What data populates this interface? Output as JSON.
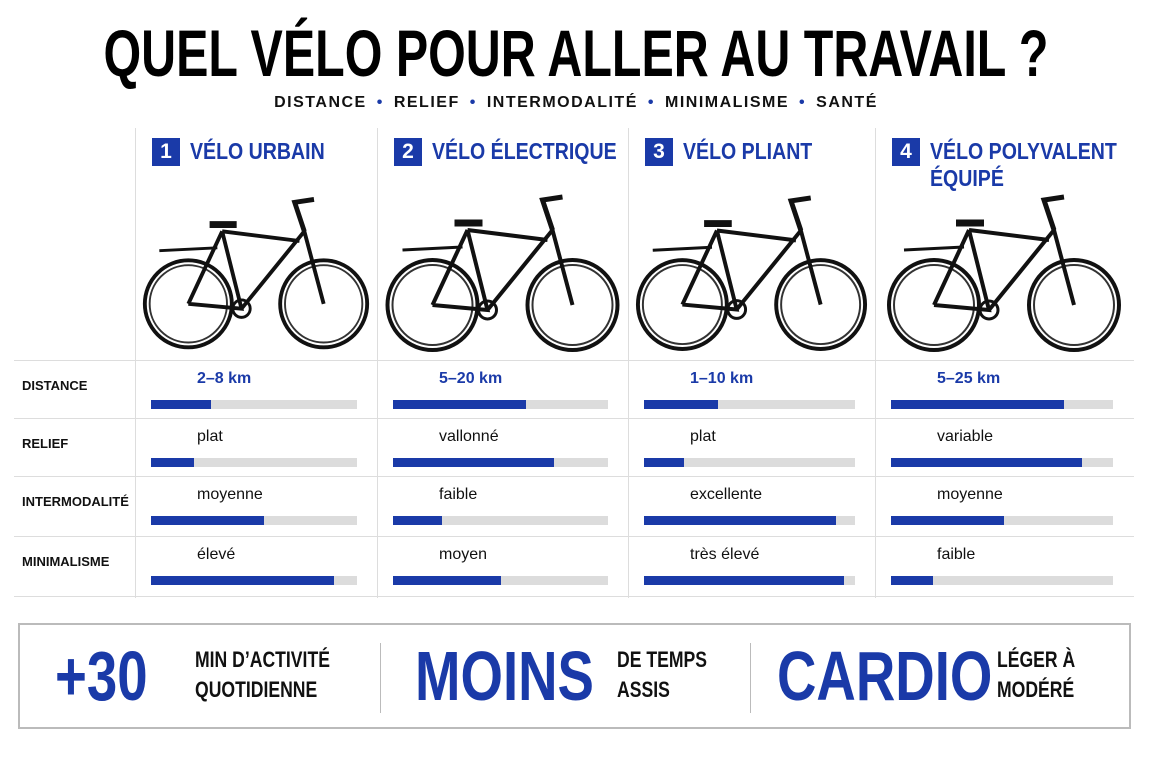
{
  "title": "QUEL VÉLO POUR ALLER AU TRAVAIL ?",
  "subtitle": [
    "DISTANCE",
    "RELIEF",
    "INTERMODALITÉ",
    "MINIMALISME",
    "SANTÉ"
  ],
  "row_labels": [
    "DISTANCE",
    "RELIEF",
    "INTERMODALITÉ",
    "MINIMALISME"
  ],
  "columns": [
    {
      "number": "1",
      "name": "VÉLO URBAIN",
      "cells": [
        {
          "label": "2–8 km",
          "level": 29
        },
        {
          "label": "plat",
          "level": 21
        },
        {
          "label": "moyenne",
          "level": 55
        },
        {
          "label": "élevé",
          "level": 89
        }
      ]
    },
    {
      "number": "2",
      "name": "VÉLO ÉLECTRIQUE",
      "cells": [
        {
          "label": "5–20 km",
          "level": 62
        },
        {
          "label": "vallonné",
          "level": 75
        },
        {
          "label": "faible",
          "level": 23
        },
        {
          "label": "moyen",
          "level": 50
        }
      ]
    },
    {
      "number": "3",
      "name": "VÉLO PLIANT",
      "cells": [
        {
          "label": "1–10 km",
          "level": 35
        },
        {
          "label": "plat",
          "level": 19
        },
        {
          "label": "excellente",
          "level": 91
        },
        {
          "label": "très élevé",
          "level": 95
        }
      ]
    },
    {
      "number": "4",
      "name": "VÉLO POLYVALENT ÉQUIPÉ",
      "cells": [
        {
          "label": "5–25 km",
          "level": 78
        },
        {
          "label": "variable",
          "level": 86
        },
        {
          "label": "moyenne",
          "level": 51
        },
        {
          "label": "faible",
          "level": 19
        }
      ]
    }
  ],
  "footer": [
    {
      "big": "+30",
      "text": [
        "MIN D’ACTIVITÉ",
        "QUOTIDIENNE"
      ]
    },
    {
      "big": "MOINS",
      "text": [
        "DE TEMPS",
        "ASSIS"
      ]
    },
    {
      "big": "CARDIO",
      "text": [
        "LÉGER À",
        "MODÉRÉ"
      ]
    }
  ]
}
